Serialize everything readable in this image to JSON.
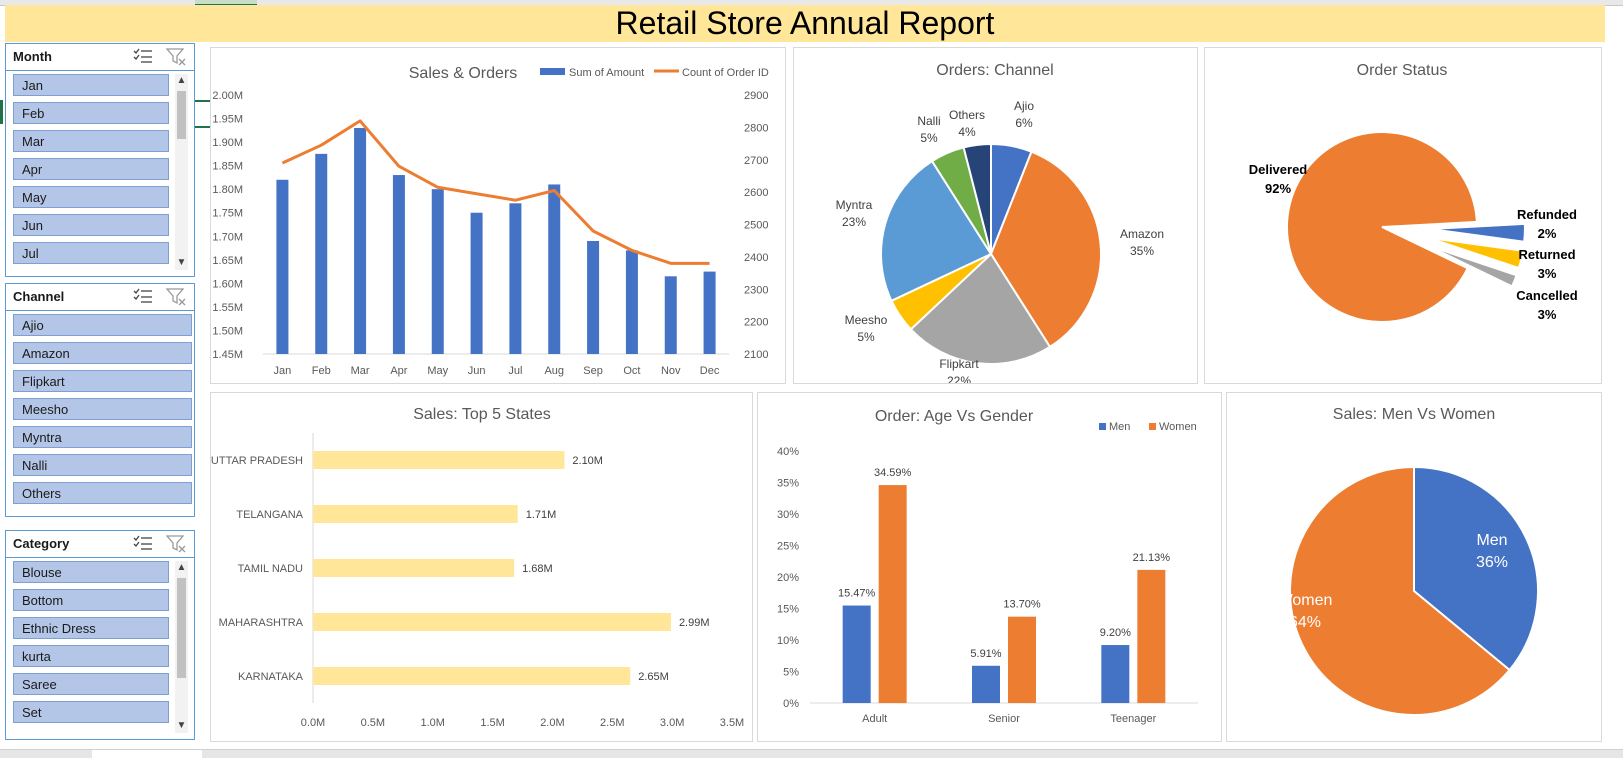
{
  "report_title": "Retail Store Annual Report",
  "colors": {
    "blue": "#4472c4",
    "orange": "#ed7d31",
    "gray": "#a5a5a5",
    "gold": "#ffc000",
    "lightblue": "#5b9bd5",
    "green": "#70ad47",
    "navy": "#264478",
    "pale": "#ffe699",
    "slicer": "#b4c6e7"
  },
  "slicers": {
    "month": {
      "title": "Month",
      "items": [
        "Jan",
        "Feb",
        "Mar",
        "Apr",
        "May",
        "Jun",
        "Jul"
      ]
    },
    "channel": {
      "title": "Channel",
      "items": [
        "Ajio",
        "Amazon",
        "Flipkart",
        "Meesho",
        "Myntra",
        "Nalli",
        "Others"
      ]
    },
    "category": {
      "title": "Category",
      "items": [
        "Blouse",
        "Bottom",
        "Ethnic Dress",
        "kurta",
        "Saree",
        "Set"
      ]
    }
  },
  "chart_data": [
    {
      "id": "sales_orders",
      "type": "bar",
      "title": "Sales & Orders",
      "categories": [
        "Jan",
        "Feb",
        "Mar",
        "Apr",
        "May",
        "Jun",
        "Jul",
        "Aug",
        "Sep",
        "Oct",
        "Nov",
        "Dec"
      ],
      "series": [
        {
          "name": "Sum of Amount",
          "type": "bar",
          "axis": "left",
          "values": [
            1.82,
            1.875,
            1.93,
            1.83,
            1.8,
            1.75,
            1.77,
            1.81,
            1.69,
            1.67,
            1.615,
            1.625
          ]
        },
        {
          "name": "Count of Order ID",
          "type": "line",
          "axis": "right",
          "values": [
            2690,
            2745,
            2820,
            2680,
            2615,
            2595,
            2575,
            2605,
            2480,
            2420,
            2380,
            2380
          ]
        }
      ],
      "left_axis": {
        "ylim": [
          1.45,
          2.0
        ],
        "ticks": [
          "1.45M",
          "1.50M",
          "1.55M",
          "1.60M",
          "1.65M",
          "1.70M",
          "1.75M",
          "1.80M",
          "1.85M",
          "1.90M",
          "1.95M",
          "2.00M"
        ]
      },
      "right_axis": {
        "ylim": [
          2100,
          2900
        ],
        "ticks": [
          "2100",
          "2200",
          "2300",
          "2400",
          "2500",
          "2600",
          "2700",
          "2800",
          "2900"
        ]
      },
      "legend": "top-right"
    },
    {
      "id": "orders_channel",
      "type": "pie",
      "title": "Orders: Channel",
      "slices": [
        {
          "name": "Ajio",
          "value": 6,
          "label": "6%"
        },
        {
          "name": "Amazon",
          "value": 35,
          "label": "35%"
        },
        {
          "name": "Flipkart",
          "value": 22,
          "label": "22%"
        },
        {
          "name": "Meesho",
          "value": 5,
          "label": "5%"
        },
        {
          "name": "Myntra",
          "value": 23,
          "label": "23%"
        },
        {
          "name": "Nalli",
          "value": 5,
          "label": "5%"
        },
        {
          "name": "Others",
          "value": 4,
          "label": "4%"
        }
      ]
    },
    {
      "id": "order_status",
      "type": "pie",
      "title": "Order Status",
      "slices": [
        {
          "name": "Delivered",
          "value": 92,
          "label": "92%"
        },
        {
          "name": "Cancelled",
          "value": 3,
          "label": "3%"
        },
        {
          "name": "Returned",
          "value": 3,
          "label": "3%"
        },
        {
          "name": "Refunded",
          "value": 2,
          "label": "2%"
        }
      ]
    },
    {
      "id": "top_states",
      "type": "bar",
      "orientation": "horizontal",
      "title": "Sales: Top 5 States",
      "categories": [
        "UTTAR PRADESH",
        "TELANGANA",
        "TAMIL NADU",
        "MAHARASHTRA",
        "KARNATAKA"
      ],
      "values": [
        2.1,
        1.71,
        1.68,
        2.99,
        2.65
      ],
      "labels": [
        "2.10M",
        "1.71M",
        "1.68M",
        "2.99M",
        "2.65M"
      ],
      "xlim": [
        0,
        3.5
      ],
      "ticks": [
        "0.0M",
        "0.5M",
        "1.0M",
        "1.5M",
        "2.0M",
        "2.5M",
        "3.0M",
        "3.5M"
      ]
    },
    {
      "id": "age_gender",
      "type": "bar",
      "title": "Order: Age Vs Gender",
      "categories": [
        "Adult",
        "Senior",
        "Teenager"
      ],
      "series": [
        {
          "name": "Men",
          "values": [
            15.47,
            5.91,
            9.2
          ],
          "labels": [
            "15.47%",
            "5.91%",
            "9.20%"
          ]
        },
        {
          "name": "Women",
          "values": [
            34.59,
            13.7,
            21.13
          ],
          "labels": [
            "34.59%",
            "13.70%",
            "21.13%"
          ]
        }
      ],
      "ylim": [
        0,
        40
      ],
      "ticks": [
        "0%",
        "5%",
        "10%",
        "15%",
        "20%",
        "25%",
        "30%",
        "35%",
        "40%"
      ],
      "legend": "top-right"
    },
    {
      "id": "men_women",
      "type": "pie",
      "title": "Sales: Men Vs Women",
      "slices": [
        {
          "name": "Men",
          "value": 36,
          "label": "36%"
        },
        {
          "name": "Women",
          "value": 64,
          "label": "64%"
        }
      ]
    }
  ]
}
